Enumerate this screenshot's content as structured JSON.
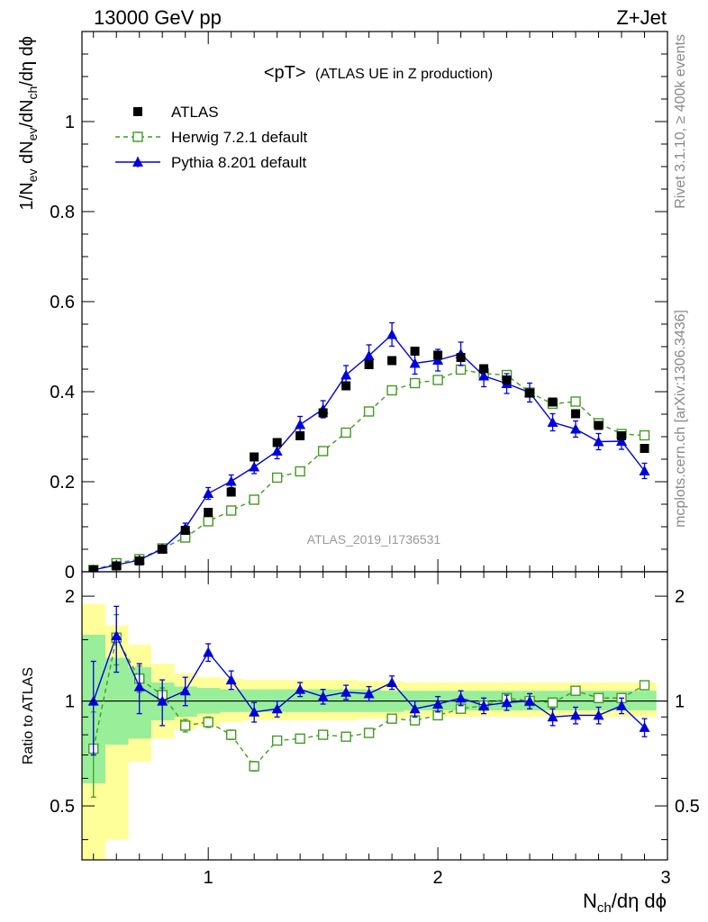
{
  "header": {
    "left": "13000 GeV pp",
    "right": "Z+Jet"
  },
  "side_labels": {
    "rivet": "Rivet 3.1.10, ≥ 400k events",
    "mcplots": "mcplots.cern.ch [arXiv:1306.3436]"
  },
  "watermark": "ATLAS_2019_I1736531",
  "chart_data": [
    {
      "type": "scatter",
      "title_main": "<pT>",
      "title_sub": "(ATLAS UE in Z production)",
      "ylabel": {
        "prefix": "1/N",
        "sub1": "ev",
        "mid": " dN",
        "sub2": "ev",
        "mid2": "/dN",
        "sub3": "ch",
        "suffix": "/dη dϕ"
      },
      "xlim": [
        0.45,
        3.0
      ],
      "ylim": [
        0.0,
        1.2
      ],
      "y_ticks": [
        0,
        0.2,
        0.4,
        0.6,
        0.8,
        1
      ],
      "y_tick_labels": [
        "0",
        "0.2",
        "0.4",
        "0.6",
        "0.8",
        "1"
      ],
      "legend_position": "top-left",
      "x": [
        0.5,
        0.6,
        0.7,
        0.8,
        0.9,
        1.0,
        1.1,
        1.2,
        1.3,
        1.4,
        1.5,
        1.6,
        1.7,
        1.8,
        1.9,
        2.0,
        2.1,
        2.2,
        2.3,
        2.4,
        2.5,
        2.6,
        2.7,
        2.8,
        2.9
      ],
      "series": [
        {
          "name": "ATLAS",
          "color": "#000000",
          "style": "filled-square",
          "values": [
            0.004,
            0.013,
            0.024,
            0.05,
            0.092,
            0.132,
            0.177,
            0.255,
            0.287,
            0.302,
            0.353,
            0.413,
            0.46,
            0.469,
            0.49,
            0.481,
            0.476,
            0.451,
            0.426,
            0.397,
            0.377,
            0.351,
            0.325,
            0.302,
            0.274
          ]
        },
        {
          "name": "Herwig 7.2.1 default",
          "color": "#449922",
          "style": "open-square-dashed",
          "values": [
            0.004,
            0.019,
            0.028,
            0.052,
            0.076,
            0.112,
            0.136,
            0.16,
            0.209,
            0.223,
            0.268,
            0.309,
            0.356,
            0.403,
            0.419,
            0.426,
            0.449,
            0.44,
            0.437,
            0.398,
            0.373,
            0.378,
            0.33,
            0.306,
            0.303
          ],
          "errors": [
            0.002,
            0.002,
            0.003,
            0.004,
            0.005,
            0.005,
            0.005,
            0.005,
            0.006,
            0.006,
            0.006,
            0.006,
            0.007,
            0.007,
            0.007,
            0.007,
            0.008,
            0.008,
            0.008,
            0.008,
            0.008,
            0.008,
            0.008,
            0.008,
            0.008
          ]
        },
        {
          "name": "Pythia 8.201 default",
          "color": "#0000dd",
          "style": "filled-triangle-solid",
          "values": [
            0.004,
            0.015,
            0.026,
            0.051,
            0.097,
            0.174,
            0.201,
            0.233,
            0.268,
            0.327,
            0.361,
            0.437,
            0.48,
            0.527,
            0.463,
            0.47,
            0.484,
            0.435,
            0.418,
            0.398,
            0.332,
            0.317,
            0.289,
            0.29,
            0.224
          ],
          "errors": [
            0.002,
            0.004,
            0.006,
            0.008,
            0.011,
            0.013,
            0.014,
            0.015,
            0.017,
            0.018,
            0.019,
            0.021,
            0.024,
            0.026,
            0.024,
            0.024,
            0.026,
            0.024,
            0.022,
            0.021,
            0.019,
            0.018,
            0.018,
            0.018,
            0.017
          ]
        }
      ]
    },
    {
      "type": "scatter",
      "ylabel": "Ratio to ATLAS",
      "xlabel": {
        "prefix": "N",
        "sub": "ch",
        "suffix": "/dη dϕ"
      },
      "xlim": [
        0.45,
        3.0
      ],
      "ylim": [
        0.35,
        2.35
      ],
      "y_scale": "log",
      "x_ticks": [
        1,
        2,
        3
      ],
      "x_tick_labels": [
        "1",
        "2",
        "3"
      ],
      "y_ticks": [
        0.5,
        1,
        2
      ],
      "y_tick_labels": [
        "0.5",
        "1",
        "2"
      ],
      "reference_line": 1,
      "x": [
        0.5,
        0.6,
        0.7,
        0.8,
        0.9,
        1.0,
        1.1,
        1.2,
        1.3,
        1.4,
        1.5,
        1.6,
        1.7,
        1.8,
        1.9,
        2.0,
        2.1,
        2.2,
        2.3,
        2.4,
        2.5,
        2.6,
        2.7,
        2.8,
        2.9
      ],
      "bands": {
        "inner_color": "#99ee99",
        "outer_color": "#ffff99",
        "inner": [
          [
            0.58,
            1.55
          ],
          [
            0.75,
            1.33
          ],
          [
            0.78,
            1.25
          ],
          [
            0.88,
            1.13
          ],
          [
            0.9,
            1.1
          ],
          [
            0.92,
            1.09
          ],
          [
            0.93,
            1.08
          ],
          [
            0.93,
            1.08
          ],
          [
            0.93,
            1.08
          ],
          [
            0.93,
            1.08
          ],
          [
            0.93,
            1.08
          ],
          [
            0.93,
            1.08
          ],
          [
            0.93,
            1.08
          ],
          [
            0.93,
            1.07
          ],
          [
            0.94,
            1.07
          ],
          [
            0.94,
            1.07
          ],
          [
            0.94,
            1.07
          ],
          [
            0.94,
            1.07
          ],
          [
            0.94,
            1.07
          ],
          [
            0.94,
            1.07
          ],
          [
            0.94,
            1.07
          ],
          [
            0.94,
            1.07
          ],
          [
            0.94,
            1.07
          ],
          [
            0.94,
            1.07
          ],
          [
            0.94,
            1.07
          ]
        ],
        "outer": [
          [
            0.35,
            1.9
          ],
          [
            0.4,
            1.65
          ],
          [
            0.67,
            1.45
          ],
          [
            0.78,
            1.28
          ],
          [
            0.83,
            1.2
          ],
          [
            0.85,
            1.17
          ],
          [
            0.87,
            1.16
          ],
          [
            0.88,
            1.15
          ],
          [
            0.88,
            1.15
          ],
          [
            0.88,
            1.15
          ],
          [
            0.88,
            1.15
          ],
          [
            0.88,
            1.15
          ],
          [
            0.89,
            1.14
          ],
          [
            0.89,
            1.14
          ],
          [
            0.9,
            1.13
          ],
          [
            0.9,
            1.13
          ],
          [
            0.9,
            1.13
          ],
          [
            0.9,
            1.13
          ],
          [
            0.9,
            1.13
          ],
          [
            0.9,
            1.13
          ],
          [
            0.9,
            1.13
          ],
          [
            0.9,
            1.13
          ],
          [
            0.9,
            1.13
          ],
          [
            0.9,
            1.13
          ],
          [
            0.9,
            1.13
          ]
        ]
      },
      "series": [
        {
          "name": "Herwig 7.2.1 default",
          "color": "#449922",
          "style": "open-square-dashed",
          "values": [
            0.73,
            1.52,
            1.16,
            1.04,
            0.85,
            0.87,
            0.8,
            0.65,
            0.77,
            0.78,
            0.8,
            0.79,
            0.81,
            0.89,
            0.88,
            0.91,
            0.95,
            0.97,
            1.02,
            1.0,
            0.99,
            1.07,
            1.02,
            1.02,
            1.11
          ],
          "errors": [
            0.2,
            0.25,
            0.1,
            0.05,
            0.035,
            0.03,
            0.025,
            0.02,
            0.02,
            0.02,
            0.02,
            0.02,
            0.02,
            0.02,
            0.02,
            0.02,
            0.02,
            0.02,
            0.02,
            0.02,
            0.02,
            0.02,
            0.02,
            0.02,
            0.02
          ]
        },
        {
          "name": "Pythia 8.201 default",
          "color": "#0000dd",
          "style": "filled-triangle-solid",
          "values": [
            1.0,
            1.54,
            1.1,
            1.0,
            1.07,
            1.38,
            1.15,
            0.93,
            0.95,
            1.08,
            1.03,
            1.06,
            1.05,
            1.13,
            0.95,
            0.98,
            1.02,
            0.97,
            0.99,
            1.0,
            0.9,
            0.91,
            0.91,
            0.97,
            0.84
          ],
          "errors": [
            0.3,
            0.33,
            0.18,
            0.15,
            0.1,
            0.08,
            0.07,
            0.06,
            0.05,
            0.05,
            0.05,
            0.05,
            0.05,
            0.05,
            0.05,
            0.05,
            0.05,
            0.05,
            0.05,
            0.05,
            0.05,
            0.05,
            0.05,
            0.05,
            0.05
          ]
        }
      ]
    }
  ]
}
